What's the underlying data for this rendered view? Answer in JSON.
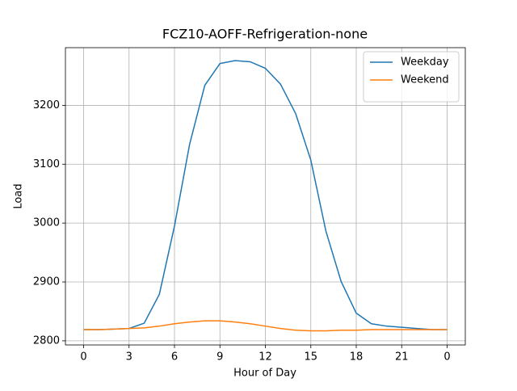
{
  "chart_data": {
    "type": "line",
    "title": "FCZ10-AOFF-Refrigeration-none",
    "xlabel": "Hour of Day",
    "ylabel": "Load",
    "x": [
      0,
      1,
      2,
      3,
      4,
      5,
      6,
      7,
      8,
      9,
      10,
      11,
      12,
      13,
      14,
      15,
      16,
      17,
      18,
      19,
      20,
      21,
      22,
      23,
      24
    ],
    "series": [
      {
        "name": "Weekday",
        "color": "#1f77b4",
        "values": [
          2819,
          2819,
          2820,
          2821,
          2830,
          2879,
          2995,
          3134,
          3234,
          3271,
          3276,
          3274,
          3263,
          3236,
          3186,
          3107,
          2986,
          2901,
          2847,
          2829,
          2825,
          2823,
          2821,
          2819,
          2819
        ]
      },
      {
        "name": "Weekend",
        "color": "#ff7f0e",
        "values": [
          2819,
          2819,
          2820,
          2821,
          2822,
          2825,
          2829,
          2832,
          2834,
          2834,
          2832,
          2829,
          2825,
          2821,
          2818,
          2817,
          2817,
          2818,
          2818,
          2819,
          2819,
          2819,
          2819,
          2819,
          2819
        ]
      }
    ],
    "xlim": [
      -1.2,
      25.2
    ],
    "ylim": [
      2793,
      3298
    ],
    "xticks": [
      0,
      3,
      6,
      9,
      12,
      15,
      18,
      21,
      {
        "value": 24,
        "label": "0"
      }
    ],
    "yticks": [
      2800,
      2900,
      3000,
      3100,
      3200
    ],
    "grid": true,
    "legend": "upper right"
  }
}
